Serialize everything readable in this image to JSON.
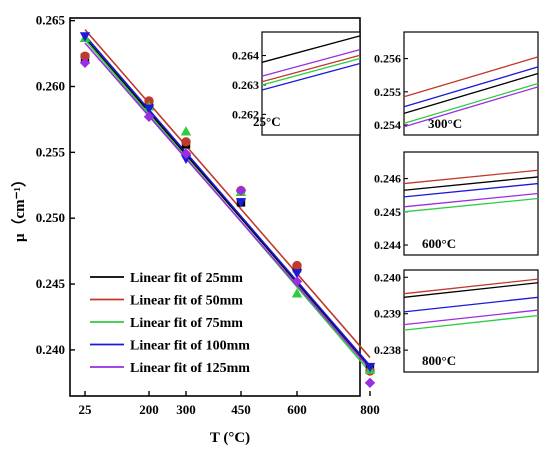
{
  "chart_data": {
    "type": "scatter",
    "xlabel": "T (°C)",
    "ylabel": "μ（cm⁻¹）",
    "x_ticks": [
      25,
      200,
      300,
      450,
      600,
      800
    ],
    "y_ticks": [
      0.24,
      0.245,
      0.25,
      0.255,
      0.26,
      0.265
    ],
    "y_tick_labels": [
      "0.240",
      "0.245",
      "0.250",
      "0.255",
      "0.260",
      "0.265"
    ],
    "xlim": [
      25,
      800
    ],
    "ylim": [
      0.2365,
      0.2652
    ],
    "colors": {
      "25mm": "#000000",
      "50mm": "#c0392b",
      "75mm": "#2ecc40",
      "100mm": "#1a1ad8",
      "125mm": "#9b2ee0"
    },
    "series": [
      {
        "key": "25mm",
        "name": "Linear fit of 25mm",
        "marker": "square",
        "x": [
          25,
          200,
          300,
          450,
          600,
          800
        ],
        "y": [
          0.2622,
          0.2587,
          0.2556,
          0.2512,
          0.2462,
          0.2386
        ],
        "fit": [
          0.26368,
          0.2387
        ]
      },
      {
        "key": "50mm",
        "name": "Linear fit of 50mm",
        "marker": "circle",
        "x": [
          25,
          200,
          300,
          450,
          600,
          800
        ],
        "y": [
          0.2623,
          0.2589,
          0.2558,
          0.2521,
          0.2464,
          0.2384
        ],
        "fit": [
          0.26432,
          0.23942
        ]
      },
      {
        "key": "75mm",
        "name": "Linear fit of 75mm",
        "marker": "triangle-up",
        "x": [
          25,
          200,
          300,
          450,
          600,
          800
        ],
        "y": [
          0.2637,
          0.2585,
          0.2566,
          0.252,
          0.2443,
          0.2385
        ],
        "fit": [
          0.26356,
          0.23832
        ]
      },
      {
        "key": "100mm",
        "name": "Linear fit of 100mm",
        "marker": "triangle-down",
        "x": [
          25,
          200,
          300,
          450,
          600,
          800
        ],
        "y": [
          0.2638,
          0.2583,
          0.2545,
          0.2512,
          0.2458,
          0.2387
        ],
        "fit": [
          0.26387,
          0.2388
        ]
      },
      {
        "key": "125mm",
        "name": "Linear fit of 125mm",
        "marker": "diamond",
        "x": [
          25,
          200,
          300,
          450,
          600,
          800
        ],
        "y": [
          0.2618,
          0.2577,
          0.2549,
          0.2521,
          0.2452,
          0.2375
        ],
        "fit": [
          0.2633,
          0.23855
        ]
      }
    ],
    "insets": [
      {
        "label": "25°C",
        "ylim": [
          0.2613,
          0.2648
        ],
        "y_ticks": [
          0.262,
          0.263,
          0.264
        ],
        "y_tick_labels": [
          "0.262",
          "0.263",
          "0.264"
        ],
        "fit_y": [
          0.26422,
          0.26356,
          0.26345,
          0.26328,
          0.26375
        ]
      },
      {
        "label": "300°C",
        "ylim": [
          0.2537,
          0.2568
        ],
        "y_ticks": [
          0.254,
          0.255,
          0.256
        ],
        "y_tick_labels": [
          "0.254",
          "0.255",
          "0.256"
        ],
        "fit_y": [
          0.25495,
          0.25545,
          0.25465,
          0.25515,
          0.25455
        ]
      },
      {
        "label": "600°C",
        "ylim": [
          0.2437,
          0.2468
        ],
        "y_ticks": [
          0.244,
          0.245,
          0.246
        ],
        "y_tick_labels": [
          "0.244",
          "0.245",
          "0.246"
        ],
        "fit_y": [
          0.24585,
          0.24605,
          0.2452,
          0.24565,
          0.24535
        ]
      },
      {
        "label": "800°C",
        "ylim": [
          0.2374,
          0.2402
        ],
        "y_ticks": [
          0.238,
          0.239,
          0.24
        ],
        "y_tick_labels": [
          "0.238",
          "0.239",
          "0.240"
        ],
        "fit_y": [
          0.23965,
          0.23975,
          0.23875,
          0.23925,
          0.2389
        ]
      }
    ]
  }
}
